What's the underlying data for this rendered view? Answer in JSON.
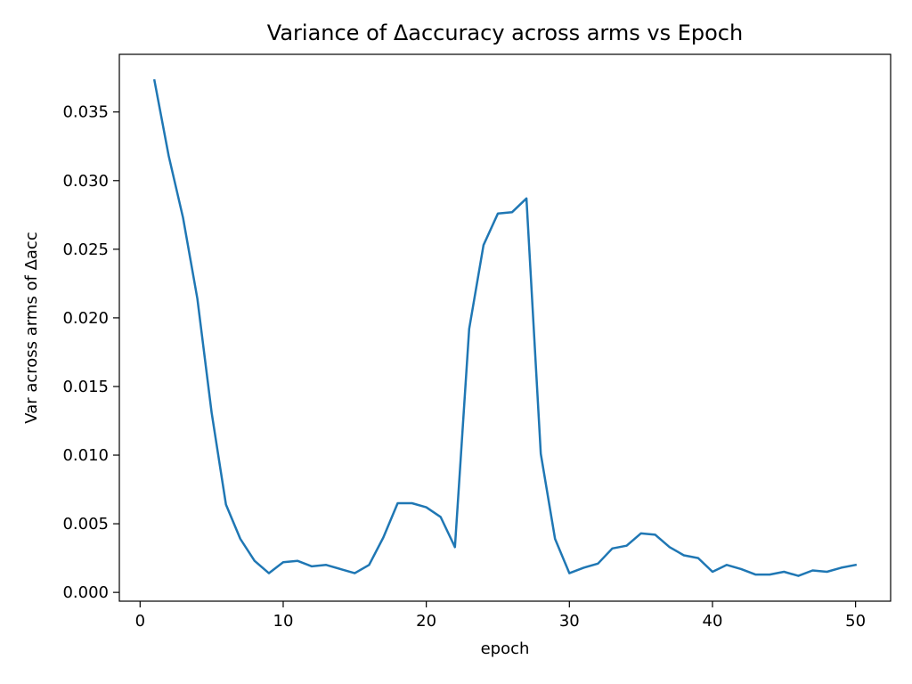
{
  "chart_data": {
    "type": "line",
    "title": "Variance of Δaccuracy across arms vs Epoch",
    "xlabel": "epoch",
    "ylabel": "Var across arms of Δacc",
    "xlim": [
      -1.45,
      52.45
    ],
    "ylim": [
      -0.00064,
      0.0392
    ],
    "xticks": [
      0,
      10,
      20,
      30,
      40,
      50
    ],
    "xtick_labels": [
      "0",
      "10",
      "20",
      "30",
      "40",
      "50"
    ],
    "yticks": [
      0.0,
      0.005,
      0.01,
      0.015,
      0.02,
      0.025,
      0.03,
      0.035
    ],
    "ytick_labels": [
      "0.000",
      "0.005",
      "0.010",
      "0.015",
      "0.020",
      "0.025",
      "0.030",
      "0.035"
    ],
    "grid": false,
    "legend": "none",
    "series": [
      {
        "color": "#1f77b4",
        "x": [
          1,
          2,
          3,
          4,
          5,
          6,
          7,
          8,
          9,
          10,
          11,
          12,
          13,
          14,
          15,
          16,
          17,
          18,
          19,
          20,
          21,
          22,
          23,
          24,
          25,
          26,
          27,
          28,
          29,
          30,
          31,
          32,
          33,
          34,
          35,
          36,
          37,
          38,
          39,
          40,
          41,
          42,
          43,
          44,
          45,
          46,
          47,
          48,
          49,
          50
        ],
        "y": [
          0.0373,
          0.0318,
          0.0273,
          0.0214,
          0.0131,
          0.0064,
          0.0039,
          0.0023,
          0.0014,
          0.0022,
          0.0023,
          0.0019,
          0.002,
          0.0017,
          0.0014,
          0.002,
          0.004,
          0.0065,
          0.0065,
          0.0062,
          0.0055,
          0.0033,
          0.0192,
          0.0253,
          0.0276,
          0.0277,
          0.0287,
          0.0101,
          0.0039,
          0.0014,
          0.0018,
          0.0021,
          0.0032,
          0.0034,
          0.0043,
          0.0042,
          0.0033,
          0.0027,
          0.0025,
          0.0015,
          0.002,
          0.0017,
          0.0013,
          0.0013,
          0.0015,
          0.0012,
          0.0016,
          0.0015,
          0.0018,
          0.002
        ]
      }
    ]
  }
}
